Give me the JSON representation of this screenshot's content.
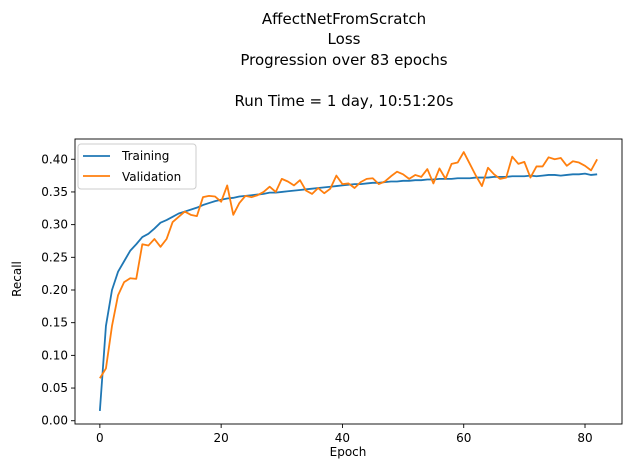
{
  "chart_data": {
    "type": "line",
    "title_lines": [
      "AffectNetFromScratch",
      "Loss",
      "Progression over 83 epochs",
      "",
      "Run Time = 1 day, 10:51:20s"
    ],
    "xlabel": "Epoch",
    "ylabel": "Recall",
    "xlim": [
      -4.1,
      86.1
    ],
    "ylim": [
      -0.005,
      0.431
    ],
    "xticks": [
      0,
      20,
      40,
      60,
      80
    ],
    "yticks": [
      0.0,
      0.05,
      0.1,
      0.15,
      0.2,
      0.25,
      0.3,
      0.35,
      0.4
    ],
    "xtick_labels": [
      "0",
      "20",
      "40",
      "60",
      "80"
    ],
    "ytick_labels": [
      "0.00",
      "0.05",
      "0.10",
      "0.15",
      "0.20",
      "0.25",
      "0.30",
      "0.35",
      "0.40"
    ],
    "grid": false,
    "legend_position": "upper-left",
    "x": [
      0,
      1,
      2,
      3,
      4,
      5,
      6,
      7,
      8,
      9,
      10,
      11,
      12,
      13,
      14,
      15,
      16,
      17,
      18,
      19,
      20,
      21,
      22,
      23,
      24,
      25,
      26,
      27,
      28,
      29,
      30,
      31,
      32,
      33,
      34,
      35,
      36,
      37,
      38,
      39,
      40,
      41,
      42,
      43,
      44,
      45,
      46,
      47,
      48,
      49,
      50,
      51,
      52,
      53,
      54,
      55,
      56,
      57,
      58,
      59,
      60,
      61,
      62,
      63,
      64,
      65,
      66,
      67,
      68,
      69,
      70,
      71,
      72,
      73,
      74,
      75,
      76,
      77,
      78,
      79,
      80,
      81,
      82
    ],
    "series": [
      {
        "name": "Training",
        "color": "#1f77b4",
        "values": [
          0.015,
          0.145,
          0.2,
          0.228,
          0.244,
          0.26,
          0.27,
          0.281,
          0.286,
          0.294,
          0.303,
          0.307,
          0.312,
          0.317,
          0.32,
          0.323,
          0.326,
          0.33,
          0.333,
          0.336,
          0.338,
          0.34,
          0.341,
          0.343,
          0.344,
          0.345,
          0.346,
          0.347,
          0.349,
          0.349,
          0.35,
          0.351,
          0.352,
          0.353,
          0.354,
          0.355,
          0.356,
          0.357,
          0.358,
          0.359,
          0.36,
          0.361,
          0.362,
          0.362,
          0.363,
          0.364,
          0.364,
          0.365,
          0.366,
          0.366,
          0.367,
          0.367,
          0.368,
          0.368,
          0.369,
          0.369,
          0.37,
          0.37,
          0.37,
          0.371,
          0.371,
          0.371,
          0.372,
          0.372,
          0.372,
          0.373,
          0.373,
          0.373,
          0.374,
          0.374,
          0.374,
          0.375,
          0.374,
          0.375,
          0.376,
          0.376,
          0.375,
          0.376,
          0.377,
          0.377,
          0.378,
          0.376,
          0.377
        ]
      },
      {
        "name": "Validation",
        "color": "#ff7f0e",
        "values": [
          0.065,
          0.08,
          0.145,
          0.192,
          0.212,
          0.218,
          0.217,
          0.27,
          0.268,
          0.278,
          0.266,
          0.278,
          0.304,
          0.312,
          0.32,
          0.315,
          0.313,
          0.342,
          0.344,
          0.343,
          0.335,
          0.36,
          0.315,
          0.333,
          0.344,
          0.342,
          0.345,
          0.35,
          0.358,
          0.35,
          0.37,
          0.366,
          0.36,
          0.368,
          0.352,
          0.347,
          0.356,
          0.348,
          0.355,
          0.375,
          0.362,
          0.363,
          0.356,
          0.365,
          0.37,
          0.371,
          0.362,
          0.366,
          0.374,
          0.381,
          0.377,
          0.37,
          0.376,
          0.373,
          0.385,
          0.363,
          0.386,
          0.37,
          0.393,
          0.395,
          0.411,
          0.393,
          0.375,
          0.359,
          0.387,
          0.377,
          0.37,
          0.372,
          0.404,
          0.393,
          0.396,
          0.372,
          0.389,
          0.389,
          0.403,
          0.4,
          0.402,
          0.39,
          0.397,
          0.395,
          0.39,
          0.383,
          0.4
        ]
      }
    ]
  }
}
